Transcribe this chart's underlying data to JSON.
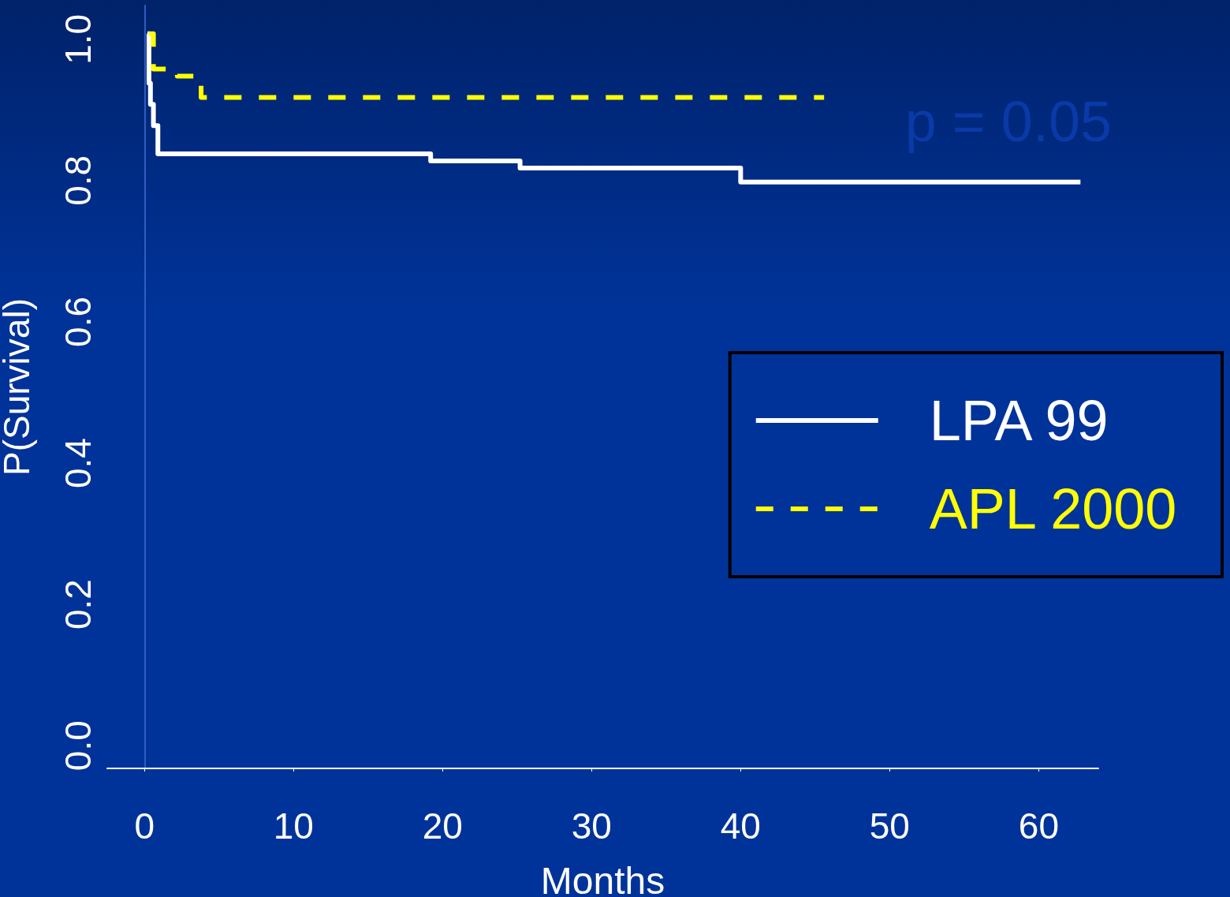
{
  "chart_data": {
    "type": "step",
    "xlabel": "Months",
    "ylabel": "P(Survival)",
    "xlim": [
      -2.5,
      64
    ],
    "xticks": [
      0,
      10,
      20,
      30,
      40,
      50,
      60
    ],
    "ylim": [
      -0.04,
      1.04
    ],
    "yticks": [
      {
        "value": 0,
        "label": "0.0"
      },
      0.2,
      0.4,
      0.6,
      0.8,
      {
        "value": 1,
        "label": "1.0"
      }
    ],
    "grid": false,
    "legend": "right",
    "annotations": [
      "p = 0.05"
    ],
    "series": [
      {
        "name": "LPA 99",
        "color": "#ffffff",
        "line_style": "solid",
        "x": [
          0.2,
          0.3,
          0.4,
          0.6,
          0.9,
          19.2,
          25.2,
          40,
          62.8
        ],
        "values": [
          1.0,
          0.93,
          0.9,
          0.87,
          0.83,
          0.82,
          0.81,
          0.79,
          0.79
        ]
      },
      {
        "name": "APL 2000",
        "color": "#ffff00",
        "line_style": "dashed",
        "x": [
          0.3,
          0.6,
          2.2,
          3.8,
          45.6
        ],
        "values": [
          1.0,
          0.95,
          0.94,
          0.91,
          0.91
        ]
      }
    ]
  }
}
